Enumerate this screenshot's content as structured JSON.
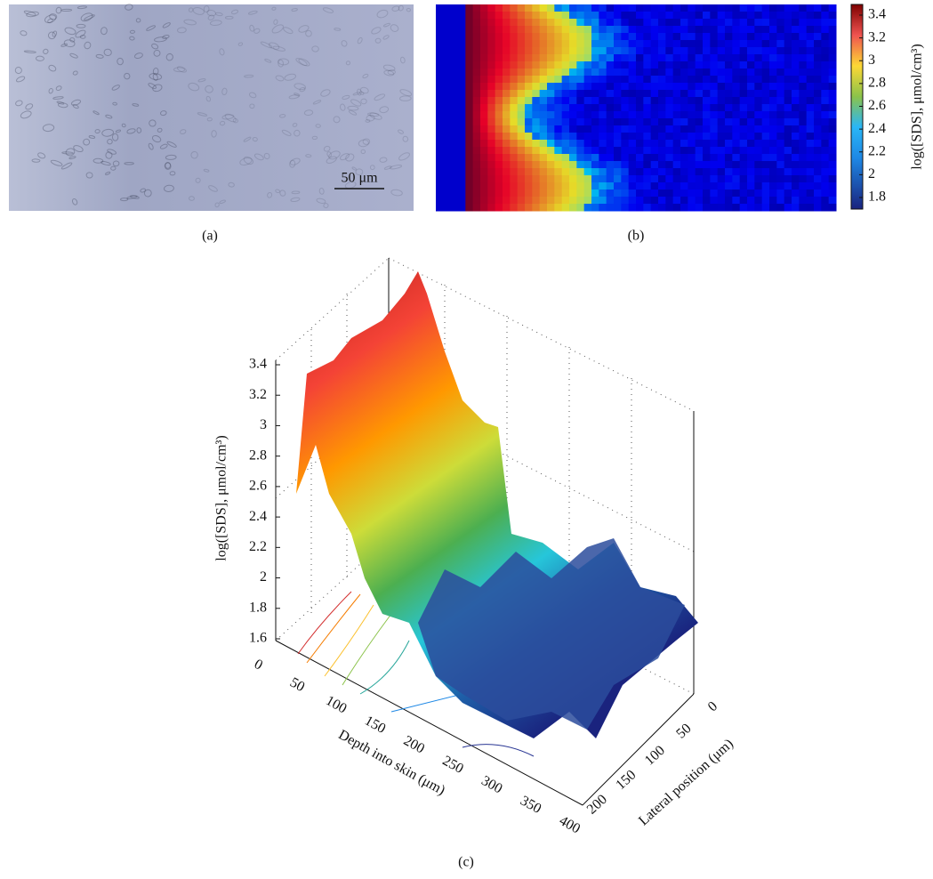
{
  "panels": {
    "a": {
      "caption": "(a)",
      "scale_bar": "50 μm"
    },
    "b": {
      "caption": "(b)",
      "colorbar_label": "log([SDS], μmol/cm³)",
      "colorbar_ticks": [
        1.8,
        2,
        2.2,
        2.4,
        2.6,
        2.8,
        3,
        3.2,
        3.4
      ]
    },
    "c": {
      "caption": "(c)",
      "z_label": "log([SDS], μmol/cm³)",
      "z_ticks": [
        1.6,
        1.8,
        2,
        2.2,
        2.4,
        2.6,
        2.8,
        3,
        3.2,
        3.4
      ],
      "x_label": "Depth into skin (μm)",
      "x_ticks": [
        0,
        50,
        100,
        150,
        200,
        250,
        300,
        350,
        400
      ],
      "y_label": "Lateral position (μm)",
      "y_ticks": [
        0,
        50,
        100,
        150,
        200
      ]
    }
  }
}
